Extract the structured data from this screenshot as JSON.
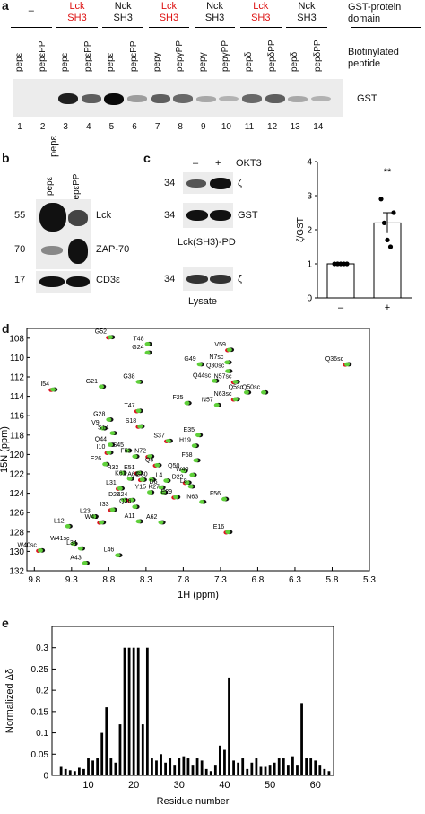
{
  "figure": {
    "panel_letters": {
      "a": "a",
      "b": "b",
      "c": "c",
      "d": "d",
      "e": "e"
    }
  },
  "panel_a": {
    "domain_headers": [
      {
        "text": "–",
        "color": "#111111"
      },
      {
        "text": "Lck\nSH3",
        "color": "#dd1111"
      },
      {
        "text": "Nck\nSH3",
        "color": "#111111"
      },
      {
        "text": "Lck\nSH3",
        "color": "#dd1111"
      },
      {
        "text": "Nck\nSH3",
        "color": "#111111"
      },
      {
        "text": "Lck\nSH3",
        "color": "#dd1111"
      },
      {
        "text": "Nck\nSH3",
        "color": "#111111"
      }
    ],
    "gst_domain_label": "GST-protein domain",
    "peptide_label": "Biotinylated peptide",
    "peptides": [
      "pepε",
      "pepεPP",
      "pepε",
      "pepεPP",
      "pepε",
      "pepεPP",
      "pepγ",
      "pepγPP",
      "pepγ",
      "pepγPP",
      "pepδ",
      "pepδPP",
      "pepδ",
      "pepδPP"
    ],
    "lanes": [
      "1",
      "2",
      "3",
      "4",
      "5",
      "6",
      "7",
      "8",
      "9",
      "10",
      "11",
      "12",
      "13",
      "14"
    ],
    "band_label": "GST",
    "band_intensity": [
      0,
      0,
      0.9,
      0.6,
      1,
      0.3,
      0.6,
      0.55,
      0.25,
      0.2,
      0.55,
      0.6,
      0.25,
      0.2
    ]
  },
  "panel_b": {
    "columns": [
      "pepε",
      "pepεPP"
    ],
    "rows": [
      {
        "mw": "55",
        "label": "Lck"
      },
      {
        "mw": "70",
        "label": "ZAP-70"
      },
      {
        "mw": "17",
        "label": "CD3ε"
      }
    ]
  },
  "panel_c": {
    "conditions": [
      "–",
      "+"
    ],
    "treatment": "OKT3",
    "rows": [
      {
        "mw": "34",
        "label": "ζ"
      },
      {
        "mw": "34",
        "label": "GST"
      },
      {
        "mw": "34",
        "label": "ζ"
      }
    ],
    "pd_label": "Lck(SH3)-PD",
    "lysate_label": "Lysate"
  },
  "chart_data": [
    {
      "type": "bar",
      "panel": "c",
      "categories": [
        "–",
        "+"
      ],
      "values": [
        1.0,
        2.2
      ],
      "error": [
        0.0,
        0.3
      ],
      "points": [
        [
          1,
          1,
          1,
          1,
          1
        ],
        [
          2.9,
          2.2,
          1.7,
          1.5,
          2.5
        ]
      ],
      "ylabel": "ζ/GST",
      "ylim": [
        0,
        4
      ],
      "yticks": [
        "0",
        "1",
        "2",
        "3",
        "4"
      ],
      "annotation": "**"
    },
    {
      "type": "scatter",
      "panel": "d",
      "xlabel": "1H (ppm)",
      "ylabel": "15N (ppm)",
      "xlim": [
        9.9,
        5.3
      ],
      "ylim": [
        107,
        132
      ],
      "xticks": [
        "9.8",
        "9.3",
        "8.8",
        "8.3",
        "7.8",
        "7.3",
        "6.8",
        "6.3",
        "5.8",
        "5.3"
      ],
      "yticks": [
        "108",
        "110",
        "112",
        "114",
        "116",
        "118",
        "120",
        "122",
        "124",
        "126",
        "128",
        "130",
        "132"
      ],
      "peaks": [
        {
          "label": "G52",
          "x": 8.78,
          "y": 107.9
        },
        {
          "label": "T48",
          "x": 8.28,
          "y": 108.6
        },
        {
          "label": "G24",
          "x": 8.28,
          "y": 109.5
        },
        {
          "label": "V59",
          "x": 7.18,
          "y": 109.2
        },
        {
          "label": "G49",
          "x": 7.58,
          "y": 110.7
        },
        {
          "label": "N7sc",
          "x": 7.21,
          "y": 110.5
        },
        {
          "label": "Q36sc",
          "x": 5.6,
          "y": 110.7
        },
        {
          "label": "Q30sc",
          "x": 7.2,
          "y": 111.4
        },
        {
          "label": "Q44sc",
          "x": 7.38,
          "y": 112.4
        },
        {
          "label": "N57sc",
          "x": 7.1,
          "y": 112.5
        },
        {
          "label": "G38",
          "x": 8.4,
          "y": 112.5
        },
        {
          "label": "G21",
          "x": 8.9,
          "y": 113.0
        },
        {
          "label": "I54",
          "x": 9.55,
          "y": 113.3
        },
        {
          "label": "Q5sc",
          "x": 6.95,
          "y": 113.6
        },
        {
          "label": "Q50sc",
          "x": 6.72,
          "y": 113.6
        },
        {
          "label": "N63sc",
          "x": 7.1,
          "y": 114.3
        },
        {
          "label": "F25",
          "x": 7.75,
          "y": 114.7
        },
        {
          "label": "N57",
          "x": 7.35,
          "y": 114.9
        },
        {
          "label": "T47",
          "x": 8.4,
          "y": 115.5
        },
        {
          "label": "G28",
          "x": 8.8,
          "y": 116.4
        },
        {
          "label": "V9",
          "x": 8.88,
          "y": 117.3
        },
        {
          "label": "S18",
          "x": 8.38,
          "y": 117.1
        },
        {
          "label": "S14",
          "x": 8.75,
          "y": 117.8
        },
        {
          "label": "E35",
          "x": 7.6,
          "y": 118.0
        },
        {
          "label": "S37",
          "x": 8.0,
          "y": 118.6
        },
        {
          "label": "Q44",
          "x": 8.78,
          "y": 119.0
        },
        {
          "label": "H19",
          "x": 7.65,
          "y": 119.1
        },
        {
          "label": "I10",
          "x": 8.8,
          "y": 119.8
        },
        {
          "label": "S45",
          "x": 8.55,
          "y": 119.6
        },
        {
          "label": "F53",
          "x": 8.45,
          "y": 120.2
        },
        {
          "label": "N72",
          "x": 8.25,
          "y": 120.2
        },
        {
          "label": "F58",
          "x": 7.63,
          "y": 120.6
        },
        {
          "label": "E26",
          "x": 8.85,
          "y": 121.0
        },
        {
          "label": "Q5",
          "x": 8.15,
          "y": 121.1
        },
        {
          "label": "Q50",
          "x": 7.8,
          "y": 121.7
        },
        {
          "label": "R32",
          "x": 8.62,
          "y": 121.9
        },
        {
          "label": "E51",
          "x": 8.4,
          "y": 121.9
        },
        {
          "label": "W40",
          "x": 7.68,
          "y": 122.1
        },
        {
          "label": "K61",
          "x": 8.52,
          "y": 122.5
        },
        {
          "label": "A60",
          "x": 8.35,
          "y": 122.6
        },
        {
          "label": "G30",
          "x": 8.23,
          "y": 122.6
        },
        {
          "label": "L4",
          "x": 8.03,
          "y": 122.7
        },
        {
          "label": "D22",
          "x": 7.75,
          "y": 122.9
        },
        {
          "label": "D6",
          "x": 8.1,
          "y": 123.4
        },
        {
          "label": "L8",
          "x": 7.7,
          "y": 123.3
        },
        {
          "label": "L31",
          "x": 8.65,
          "y": 123.5
        },
        {
          "label": "Y15",
          "x": 8.25,
          "y": 123.9
        },
        {
          "label": "K27",
          "x": 8.07,
          "y": 123.9
        },
        {
          "label": "E29",
          "x": 7.9,
          "y": 124.4
        },
        {
          "label": "F56",
          "x": 7.25,
          "y": 124.6
        },
        {
          "label": "D20",
          "x": 8.6,
          "y": 124.7
        },
        {
          "label": "K24",
          "x": 8.5,
          "y": 124.7
        },
        {
          "label": "N63",
          "x": 7.55,
          "y": 124.9
        },
        {
          "label": "Q36",
          "x": 8.45,
          "y": 125.4
        },
        {
          "label": "I33",
          "x": 8.75,
          "y": 125.7
        },
        {
          "label": "L23",
          "x": 9.0,
          "y": 126.4
        },
        {
          "label": "A11",
          "x": 8.4,
          "y": 126.9
        },
        {
          "label": "W41",
          "x": 8.9,
          "y": 127.0
        },
        {
          "label": "A62",
          "x": 8.1,
          "y": 127.0
        },
        {
          "label": "L12",
          "x": 9.35,
          "y": 127.4
        },
        {
          "label": "E16",
          "x": 7.2,
          "y": 128.0
        },
        {
          "label": "W41sc",
          "x": 9.28,
          "y": 129.2
        },
        {
          "label": "L34",
          "x": 9.18,
          "y": 129.7
        },
        {
          "label": "W40sc",
          "x": 9.72,
          "y": 129.9
        },
        {
          "label": "L46",
          "x": 8.68,
          "y": 130.4
        },
        {
          "label": "A43",
          "x": 9.12,
          "y": 131.2
        }
      ]
    },
    {
      "type": "bar",
      "panel": "e",
      "xlabel": "Residue number",
      "ylabel": "Normalized Δδ",
      "xlim": [
        2,
        64
      ],
      "ylim": [
        0,
        0.35
      ],
      "xticks": [
        "10",
        "20",
        "30",
        "40",
        "50",
        "60"
      ],
      "yticks": [
        "0",
        "0.05",
        "0.1",
        "0.15",
        "0.2",
        "0.25",
        "0.3"
      ],
      "x": [
        4,
        5,
        6,
        7,
        8,
        9,
        10,
        11,
        12,
        13,
        14,
        15,
        16,
        17,
        18,
        19,
        20,
        21,
        22,
        23,
        24,
        25,
        26,
        27,
        28,
        29,
        30,
        31,
        32,
        33,
        34,
        35,
        36,
        37,
        38,
        39,
        40,
        41,
        42,
        43,
        44,
        45,
        46,
        47,
        48,
        49,
        50,
        51,
        52,
        53,
        54,
        55,
        56,
        57,
        58,
        59,
        60,
        61,
        62,
        63
      ],
      "values": [
        0.02,
        0.015,
        0.012,
        0.01,
        0.018,
        0.015,
        0.04,
        0.035,
        0.04,
        0.1,
        0.16,
        0.04,
        0.03,
        0.12,
        0.3,
        0.3,
        0.3,
        0.3,
        0.12,
        0.3,
        0.04,
        0.035,
        0.05,
        0.03,
        0.04,
        0.025,
        0.04,
        0.045,
        0.04,
        0.025,
        0.04,
        0.035,
        0.015,
        0.01,
        0.025,
        0.07,
        0.06,
        0.23,
        0.035,
        0.03,
        0.04,
        0.015,
        0.03,
        0.04,
        0.02,
        0.02,
        0.025,
        0.03,
        0.04,
        0.04,
        0.025,
        0.045,
        0.025,
        0.17,
        0.04,
        0.04,
        0.035,
        0.025,
        0.015,
        0.01
      ]
    }
  ]
}
